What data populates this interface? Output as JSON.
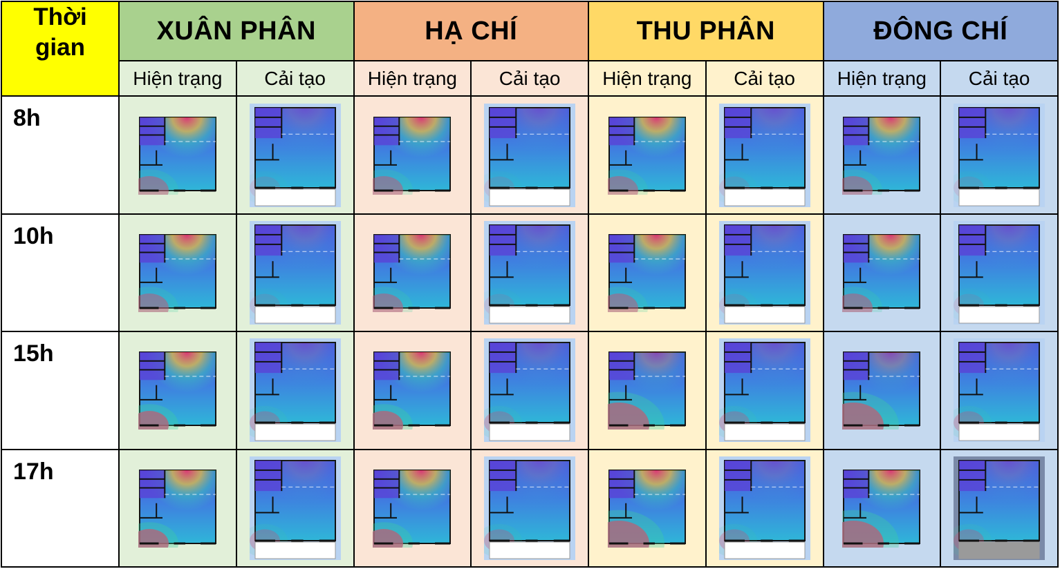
{
  "corner_label": "Thời gian",
  "sub_labels": {
    "existing": "Hiện trạng",
    "improved": "Cải tạo"
  },
  "seasons": [
    {
      "name": "XUÂN PHÂN",
      "header_color": "#a9d18e",
      "sub_color": "#e2f0d9",
      "cell_color": "#e2f0d9"
    },
    {
      "name": "HẠ CHÍ",
      "header_color": "#f4b183",
      "sub_color": "#fbe5d6",
      "cell_color": "#fbe5d6"
    },
    {
      "name": "THU PHÂN",
      "header_color": "#ffd966",
      "sub_color": "#fff2cc",
      "cell_color": "#fff2cc"
    },
    {
      "name": "ĐÔNG CHÍ",
      "header_color": "#8faadc",
      "sub_color": "#c5d9ef",
      "cell_color": "#c5d9ef"
    }
  ],
  "times": [
    "8h",
    "10h",
    "15h",
    "17h"
  ],
  "thumbnail_icon": "daylight-floor-plan-heatmap"
}
